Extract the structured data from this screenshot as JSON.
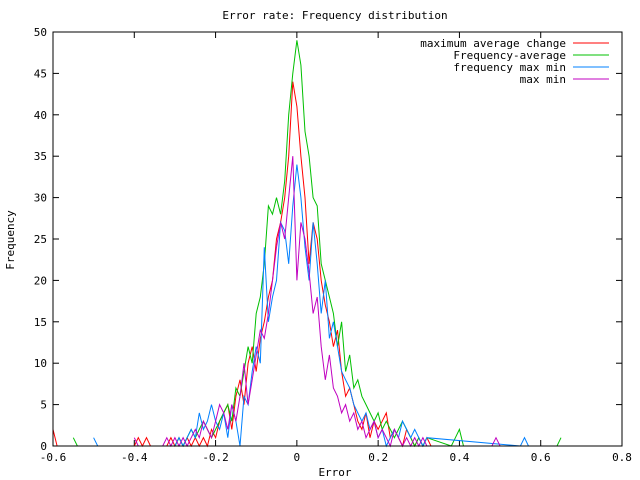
{
  "chart_data": {
    "type": "line",
    "title": "Error rate: Frequency distribution",
    "xlabel": "Error",
    "ylabel": "Frequency",
    "xlim": [
      -0.6,
      0.8
    ],
    "ylim": [
      0,
      50
    ],
    "x_ticks": [
      -0.6,
      -0.4,
      -0.2,
      0,
      0.2,
      0.4,
      0.6,
      0.8
    ],
    "x_tick_labels": [
      "-0.6",
      "-0.4",
      "-0.2",
      "0",
      "0.2",
      "0.4",
      "0.6",
      "0.8"
    ],
    "y_ticks": [
      0,
      5,
      10,
      15,
      20,
      25,
      30,
      35,
      40,
      45,
      50
    ],
    "y_tick_labels": [
      "0",
      "5",
      "10",
      "15",
      "20",
      "25",
      "30",
      "35",
      "40",
      "45",
      "50"
    ],
    "grid": false,
    "legend_position": "top-right",
    "series": [
      {
        "name": "maximum average change",
        "color": "#ff0000",
        "x": [
          -0.6,
          -0.59,
          -0.58,
          -0.4,
          -0.39,
          -0.38,
          -0.37,
          -0.36,
          -0.32,
          -0.31,
          -0.3,
          -0.29,
          -0.28,
          -0.27,
          -0.26,
          -0.25,
          -0.24,
          -0.23,
          -0.22,
          -0.21,
          -0.2,
          -0.19,
          -0.18,
          -0.17,
          -0.16,
          -0.15,
          -0.14,
          -0.13,
          -0.12,
          -0.11,
          -0.1,
          -0.09,
          -0.08,
          -0.07,
          -0.06,
          -0.05,
          -0.04,
          -0.03,
          -0.02,
          -0.01,
          0,
          0.01,
          0.02,
          0.03,
          0.04,
          0.05,
          0.06,
          0.07,
          0.08,
          0.09,
          0.1,
          0.11,
          0.12,
          0.13,
          0.14,
          0.15,
          0.16,
          0.17,
          0.18,
          0.19,
          0.2,
          0.21,
          0.22,
          0.23,
          0.24,
          0.25,
          0.26,
          0.27,
          0.28,
          0.29,
          0.3,
          0.31,
          0.32,
          0.33,
          0.34
        ],
        "values": [
          2,
          0,
          0,
          0,
          1,
          0,
          1,
          0,
          0,
          1,
          0,
          1,
          0,
          1,
          0,
          1,
          0,
          1,
          0,
          2,
          1,
          3,
          4,
          5,
          2,
          6,
          8,
          5,
          10,
          12,
          9,
          13,
          15,
          18,
          20,
          25,
          27,
          30,
          35,
          44,
          41,
          35,
          30,
          22,
          27,
          25,
          20,
          17,
          15,
          12,
          14,
          9,
          6,
          7,
          5,
          3,
          2,
          4,
          1,
          3,
          2,
          3,
          4,
          1,
          2,
          1,
          0,
          2,
          1,
          0,
          1,
          0,
          1,
          0,
          0
        ]
      },
      {
        "name": "Frequency-average",
        "color": "#00c000",
        "x": [
          -0.55,
          -0.54,
          -0.53,
          -0.3,
          -0.29,
          -0.28,
          -0.27,
          -0.26,
          -0.25,
          -0.24,
          -0.23,
          -0.22,
          -0.21,
          -0.2,
          -0.19,
          -0.18,
          -0.17,
          -0.16,
          -0.15,
          -0.14,
          -0.13,
          -0.12,
          -0.11,
          -0.1,
          -0.09,
          -0.08,
          -0.07,
          -0.06,
          -0.05,
          -0.04,
          -0.03,
          -0.02,
          -0.01,
          0,
          0.01,
          0.02,
          0.03,
          0.04,
          0.05,
          0.06,
          0.07,
          0.08,
          0.09,
          0.1,
          0.11,
          0.12,
          0.13,
          0.14,
          0.15,
          0.16,
          0.17,
          0.18,
          0.19,
          0.2,
          0.21,
          0.22,
          0.23,
          0.24,
          0.25,
          0.26,
          0.27,
          0.28,
          0.29,
          0.3,
          0.31,
          0.32,
          0.38,
          0.39,
          0.4,
          0.41,
          0.62,
          0.63,
          0.64,
          0.65
        ],
        "values": [
          1,
          0,
          0,
          0,
          1,
          0,
          1,
          2,
          1,
          2,
          3,
          2,
          1,
          2,
          3,
          4,
          5,
          3,
          7,
          6,
          9,
          12,
          10,
          16,
          18,
          22,
          29,
          28,
          30,
          28,
          32,
          40,
          45,
          49,
          46,
          38,
          35,
          30,
          29,
          22,
          20,
          18,
          16,
          12,
          15,
          9,
          11,
          7,
          8,
          6,
          5,
          4,
          3,
          4,
          2,
          3,
          2,
          1,
          2,
          3,
          2,
          1,
          0,
          1,
          0,
          1,
          0,
          1,
          2,
          0,
          0,
          0,
          0,
          1
        ]
      },
      {
        "name": "frequency max min",
        "color": "#0080ff",
        "x": [
          -0.5,
          -0.49,
          -0.48,
          -0.3,
          -0.29,
          -0.28,
          -0.27,
          -0.26,
          -0.25,
          -0.24,
          -0.23,
          -0.22,
          -0.21,
          -0.2,
          -0.19,
          -0.18,
          -0.17,
          -0.16,
          -0.15,
          -0.14,
          -0.13,
          -0.12,
          -0.11,
          -0.1,
          -0.09,
          -0.08,
          -0.07,
          -0.06,
          -0.05,
          -0.04,
          -0.03,
          -0.02,
          -0.01,
          0,
          0.01,
          0.02,
          0.03,
          0.04,
          0.05,
          0.06,
          0.07,
          0.08,
          0.09,
          0.1,
          0.11,
          0.12,
          0.13,
          0.14,
          0.15,
          0.16,
          0.17,
          0.18,
          0.19,
          0.2,
          0.21,
          0.22,
          0.23,
          0.24,
          0.25,
          0.26,
          0.27,
          0.28,
          0.29,
          0.3,
          0.31,
          0.32,
          0.55,
          0.56,
          0.57
        ],
        "values": [
          1,
          0,
          0,
          0,
          1,
          0,
          1,
          2,
          1,
          4,
          2,
          3,
          5,
          3,
          2,
          4,
          1,
          5,
          3,
          0,
          6,
          5,
          9,
          12,
          10,
          24,
          15,
          18,
          20,
          27,
          26,
          22,
          29,
          34,
          30,
          24,
          20,
          27,
          22,
          16,
          20,
          13,
          15,
          12,
          9,
          8,
          7,
          5,
          4,
          3,
          4,
          2,
          3,
          1,
          2,
          0,
          1,
          2,
          1,
          3,
          2,
          1,
          2,
          1,
          0,
          1,
          0,
          1,
          0
        ]
      },
      {
        "name": "max min",
        "color": "#c000c0",
        "x": [
          -0.4,
          -0.39,
          -0.38,
          -0.33,
          -0.32,
          -0.31,
          -0.3,
          -0.29,
          -0.28,
          -0.27,
          -0.26,
          -0.25,
          -0.24,
          -0.23,
          -0.22,
          -0.21,
          -0.2,
          -0.19,
          -0.18,
          -0.17,
          -0.16,
          -0.15,
          -0.14,
          -0.13,
          -0.12,
          -0.11,
          -0.1,
          -0.09,
          -0.08,
          -0.07,
          -0.06,
          -0.05,
          -0.04,
          -0.03,
          -0.02,
          -0.01,
          0,
          0.01,
          0.02,
          0.03,
          0.04,
          0.05,
          0.06,
          0.07,
          0.08,
          0.09,
          0.1,
          0.11,
          0.12,
          0.13,
          0.14,
          0.15,
          0.16,
          0.17,
          0.18,
          0.19,
          0.2,
          0.21,
          0.22,
          0.23,
          0.24,
          0.25,
          0.26,
          0.27,
          0.28,
          0.29,
          0.3,
          0.31,
          0.32,
          0.48,
          0.49,
          0.5,
          0.51
        ],
        "values": [
          1,
          0,
          0,
          0,
          1,
          0,
          1,
          0,
          1,
          0,
          1,
          2,
          1,
          3,
          2,
          1,
          3,
          5,
          4,
          2,
          5,
          3,
          6,
          10,
          5,
          8,
          11,
          14,
          13,
          16,
          20,
          24,
          27,
          25,
          30,
          35,
          20,
          27,
          25,
          21,
          16,
          18,
          12,
          8,
          11,
          7,
          6,
          4,
          5,
          3,
          4,
          2,
          3,
          1,
          2,
          3,
          1,
          2,
          1,
          0,
          2,
          1,
          0,
          1,
          0,
          1,
          0,
          1,
          0,
          0,
          1,
          0,
          0
        ]
      }
    ]
  }
}
